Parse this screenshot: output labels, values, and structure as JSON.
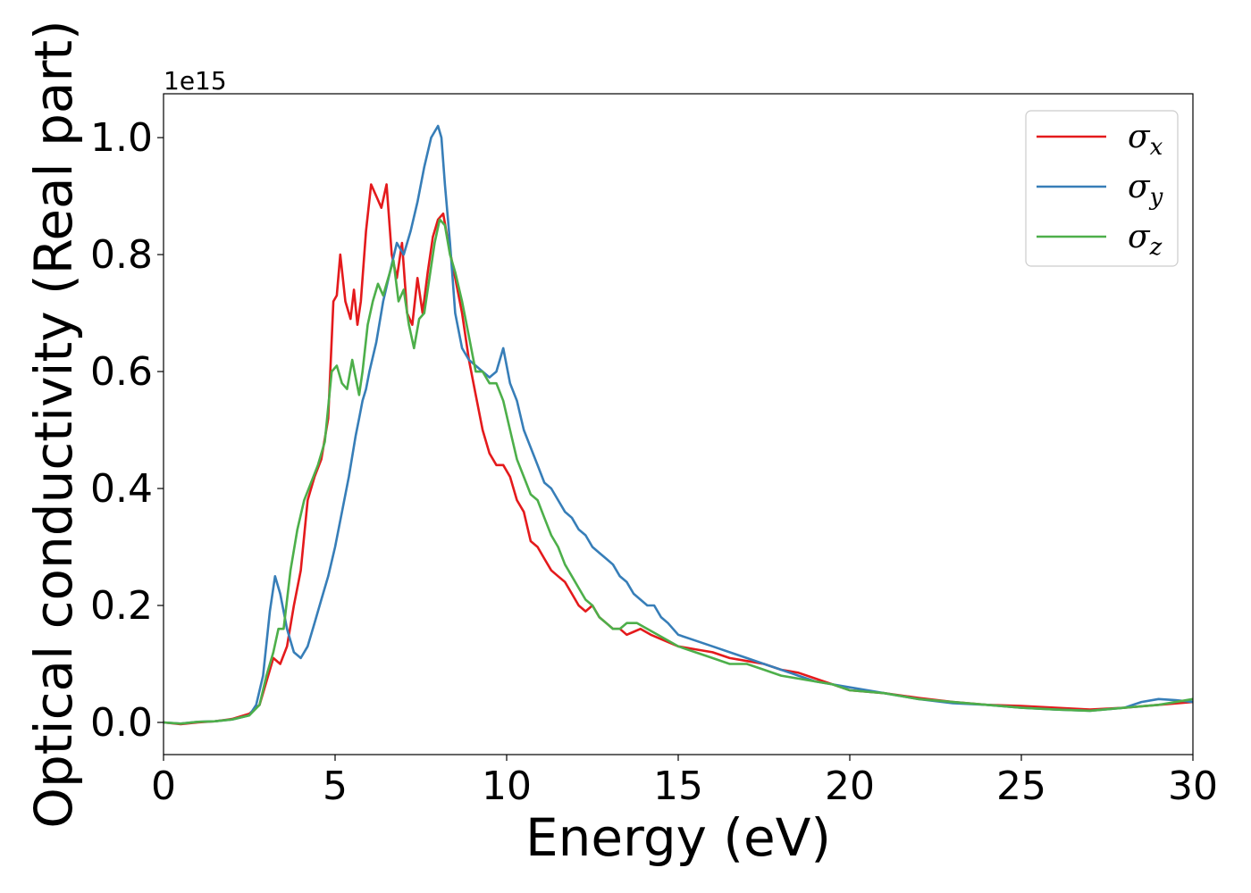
{
  "chart_data": {
    "type": "line",
    "xlabel": "Energy (eV)",
    "ylabel": "Optical conductivity (Real part)",
    "offset_text": "1e15",
    "xlim": [
      0,
      30
    ],
    "ylim": [
      -0.055,
      1.075
    ],
    "xticks": [
      0,
      5,
      10,
      15,
      20,
      25,
      30
    ],
    "xtick_labels": [
      "0",
      "5",
      "10",
      "15",
      "20",
      "25",
      "30"
    ],
    "yticks": [
      0.0,
      0.2,
      0.4,
      0.6,
      0.8,
      1.0
    ],
    "ytick_labels": [
      "0.0",
      "0.2",
      "0.4",
      "0.6",
      "0.8",
      "1.0"
    ],
    "grid": false,
    "legend_position": "top-right",
    "series": [
      {
        "name": "σx",
        "symbol": "σ",
        "subscript": "x",
        "color": "#e41a1c",
        "x": [
          0,
          0.5,
          1,
          1.5,
          2,
          2.5,
          2.8,
          3,
          3.2,
          3.4,
          3.6,
          3.8,
          4,
          4.2,
          4.4,
          4.6,
          4.8,
          4.95,
          5.05,
          5.15,
          5.3,
          5.45,
          5.55,
          5.65,
          5.75,
          5.9,
          6.05,
          6.2,
          6.35,
          6.5,
          6.65,
          6.8,
          6.95,
          7.1,
          7.25,
          7.4,
          7.55,
          7.7,
          7.85,
          8,
          8.15,
          8.3,
          8.5,
          8.7,
          8.9,
          9.1,
          9.3,
          9.5,
          9.7,
          9.9,
          10.1,
          10.3,
          10.5,
          10.7,
          10.9,
          11.1,
          11.3,
          11.5,
          11.7,
          11.9,
          12.1,
          12.3,
          12.5,
          12.7,
          12.9,
          13.1,
          13.3,
          13.5,
          13.7,
          13.9,
          14.2,
          14.6,
          15,
          15.5,
          16,
          16.5,
          17,
          17.5,
          18,
          18.5,
          19,
          19.5,
          20,
          21,
          22,
          23,
          24,
          25,
          26,
          27,
          28,
          29,
          30
        ],
        "y": [
          0,
          -0.003,
          0,
          0.002,
          0.006,
          0.015,
          0.03,
          0.07,
          0.11,
          0.1,
          0.13,
          0.2,
          0.26,
          0.38,
          0.42,
          0.45,
          0.52,
          0.72,
          0.73,
          0.8,
          0.72,
          0.69,
          0.74,
          0.68,
          0.72,
          0.84,
          0.92,
          0.9,
          0.88,
          0.92,
          0.8,
          0.76,
          0.82,
          0.7,
          0.68,
          0.76,
          0.7,
          0.77,
          0.83,
          0.86,
          0.87,
          0.82,
          0.76,
          0.7,
          0.62,
          0.56,
          0.5,
          0.46,
          0.44,
          0.44,
          0.42,
          0.38,
          0.36,
          0.31,
          0.3,
          0.28,
          0.26,
          0.25,
          0.24,
          0.22,
          0.2,
          0.19,
          0.2,
          0.18,
          0.17,
          0.16,
          0.16,
          0.15,
          0.155,
          0.16,
          0.15,
          0.14,
          0.13,
          0.125,
          0.12,
          0.11,
          0.105,
          0.1,
          0.09,
          0.085,
          0.075,
          0.065,
          0.055,
          0.05,
          0.042,
          0.035,
          0.03,
          0.028,
          0.025,
          0.022,
          0.025,
          0.03,
          0.035
        ]
      },
      {
        "name": "σy",
        "symbol": "σ",
        "subscript": "y",
        "color": "#377eb8",
        "x": [
          0,
          0.5,
          1,
          1.5,
          2,
          2.5,
          2.7,
          2.9,
          3.1,
          3.25,
          3.4,
          3.6,
          3.8,
          4,
          4.2,
          4.4,
          4.6,
          4.8,
          5,
          5.2,
          5.4,
          5.6,
          5.7,
          5.8,
          5.9,
          6,
          6.2,
          6.4,
          6.6,
          6.8,
          7,
          7.2,
          7.4,
          7.6,
          7.8,
          8,
          8.1,
          8.2,
          8.35,
          8.5,
          8.7,
          8.9,
          9.1,
          9.3,
          9.5,
          9.7,
          9.9,
          10.1,
          10.3,
          10.5,
          10.7,
          10.9,
          11.1,
          11.3,
          11.5,
          11.7,
          11.9,
          12.1,
          12.3,
          12.5,
          12.7,
          12.9,
          13.1,
          13.3,
          13.5,
          13.7,
          13.9,
          14.1,
          14.3,
          14.5,
          14.7,
          15,
          15.5,
          16,
          16.5,
          17,
          17.5,
          18,
          18.5,
          19,
          19.5,
          20,
          21,
          22,
          23,
          24,
          25,
          26,
          27,
          28,
          28.5,
          29,
          29.5,
          30
        ],
        "y": [
          0,
          -0.002,
          0.001,
          0.002,
          0.005,
          0.012,
          0.03,
          0.08,
          0.19,
          0.25,
          0.22,
          0.16,
          0.12,
          0.11,
          0.13,
          0.17,
          0.21,
          0.25,
          0.3,
          0.36,
          0.42,
          0.49,
          0.52,
          0.55,
          0.57,
          0.6,
          0.65,
          0.72,
          0.77,
          0.82,
          0.8,
          0.84,
          0.89,
          0.95,
          1.0,
          1.02,
          1.0,
          0.92,
          0.82,
          0.7,
          0.64,
          0.62,
          0.61,
          0.6,
          0.59,
          0.6,
          0.64,
          0.58,
          0.55,
          0.5,
          0.47,
          0.44,
          0.41,
          0.4,
          0.38,
          0.36,
          0.35,
          0.33,
          0.32,
          0.3,
          0.29,
          0.28,
          0.27,
          0.25,
          0.24,
          0.22,
          0.21,
          0.2,
          0.2,
          0.18,
          0.17,
          0.15,
          0.14,
          0.13,
          0.12,
          0.11,
          0.1,
          0.09,
          0.08,
          0.07,
          0.065,
          0.06,
          0.05,
          0.04,
          0.033,
          0.03,
          0.025,
          0.022,
          0.02,
          0.025,
          0.035,
          0.04,
          0.038,
          0.035
        ]
      },
      {
        "name": "σz",
        "symbol": "σ",
        "subscript": "z",
        "color": "#4daf4a",
        "x": [
          0,
          0.5,
          1,
          1.5,
          2,
          2.5,
          2.8,
          3,
          3.2,
          3.35,
          3.5,
          3.7,
          3.9,
          4.1,
          4.3,
          4.5,
          4.7,
          4.9,
          5.05,
          5.2,
          5.35,
          5.5,
          5.6,
          5.7,
          5.8,
          5.95,
          6.1,
          6.25,
          6.4,
          6.55,
          6.7,
          6.85,
          7,
          7.15,
          7.3,
          7.45,
          7.6,
          7.75,
          7.9,
          8.05,
          8.2,
          8.35,
          8.5,
          8.7,
          8.9,
          9.1,
          9.3,
          9.5,
          9.7,
          9.9,
          10.1,
          10.3,
          10.5,
          10.7,
          10.9,
          11.1,
          11.3,
          11.5,
          11.7,
          11.9,
          12.1,
          12.3,
          12.5,
          12.7,
          12.9,
          13.1,
          13.3,
          13.5,
          13.8,
          14.1,
          14.4,
          14.7,
          15,
          15.5,
          16,
          16.5,
          17,
          17.5,
          18,
          18.5,
          19,
          19.5,
          20,
          21,
          22,
          23,
          24,
          25,
          26,
          27,
          28,
          29,
          30
        ],
        "y": [
          0,
          -0.002,
          0.001,
          0.002,
          0.005,
          0.012,
          0.03,
          0.08,
          0.12,
          0.16,
          0.16,
          0.26,
          0.33,
          0.38,
          0.41,
          0.44,
          0.48,
          0.6,
          0.61,
          0.58,
          0.57,
          0.62,
          0.59,
          0.56,
          0.6,
          0.68,
          0.72,
          0.75,
          0.73,
          0.76,
          0.79,
          0.72,
          0.74,
          0.68,
          0.64,
          0.69,
          0.7,
          0.76,
          0.82,
          0.86,
          0.85,
          0.8,
          0.77,
          0.72,
          0.66,
          0.6,
          0.6,
          0.58,
          0.58,
          0.55,
          0.5,
          0.45,
          0.42,
          0.39,
          0.38,
          0.35,
          0.32,
          0.3,
          0.27,
          0.25,
          0.23,
          0.21,
          0.2,
          0.18,
          0.17,
          0.16,
          0.16,
          0.17,
          0.17,
          0.16,
          0.15,
          0.14,
          0.13,
          0.12,
          0.11,
          0.1,
          0.1,
          0.09,
          0.08,
          0.075,
          0.07,
          0.065,
          0.055,
          0.05,
          0.04,
          0.035,
          0.03,
          0.025,
          0.022,
          0.02,
          0.025,
          0.03,
          0.04
        ]
      }
    ]
  }
}
